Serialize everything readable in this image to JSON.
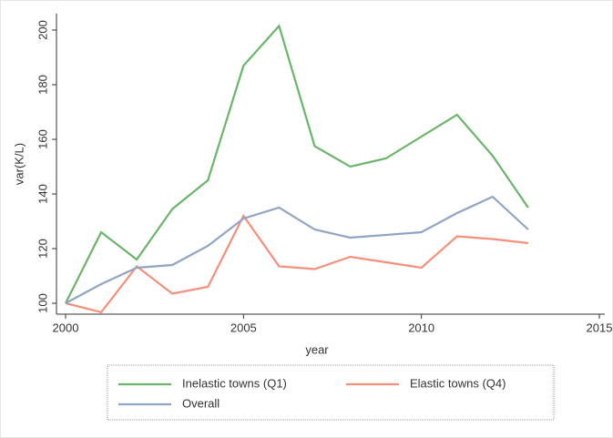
{
  "chart_data": {
    "type": "line",
    "x_label": "year",
    "y_label": "var(K/L)",
    "x": [
      2000,
      2001,
      2002,
      2003,
      2004,
      2005,
      2006,
      2007,
      2008,
      2009,
      2010,
      2011,
      2012,
      2013
    ],
    "series": [
      {
        "name": "Inelastic towns (Q1)",
        "color": "#6ab56a",
        "values": [
          100,
          126,
          116,
          134.5,
          145,
          187,
          201.5,
          157.5,
          150,
          153,
          161,
          169,
          154,
          135
        ]
      },
      {
        "name": "Elastic towns (Q4)",
        "color": "#f4907a",
        "values": [
          100,
          96.7,
          113.5,
          103.5,
          106,
          132,
          113.5,
          112.5,
          117,
          115,
          113,
          124.5,
          123.5,
          122
        ]
      },
      {
        "name": "Overall",
        "color": "#8fa5c4",
        "values": [
          100,
          107,
          113,
          114,
          121,
          131,
          135,
          127,
          124,
          125,
          126,
          133,
          139,
          127
        ]
      }
    ],
    "xlim": [
      2000,
      2015
    ],
    "xticks": [
      2000,
      2005,
      2010,
      2015
    ],
    "ylim": [
      96,
      206
    ],
    "yticks": [
      100,
      120,
      140,
      160,
      180,
      200
    ],
    "legend": "bottom"
  }
}
